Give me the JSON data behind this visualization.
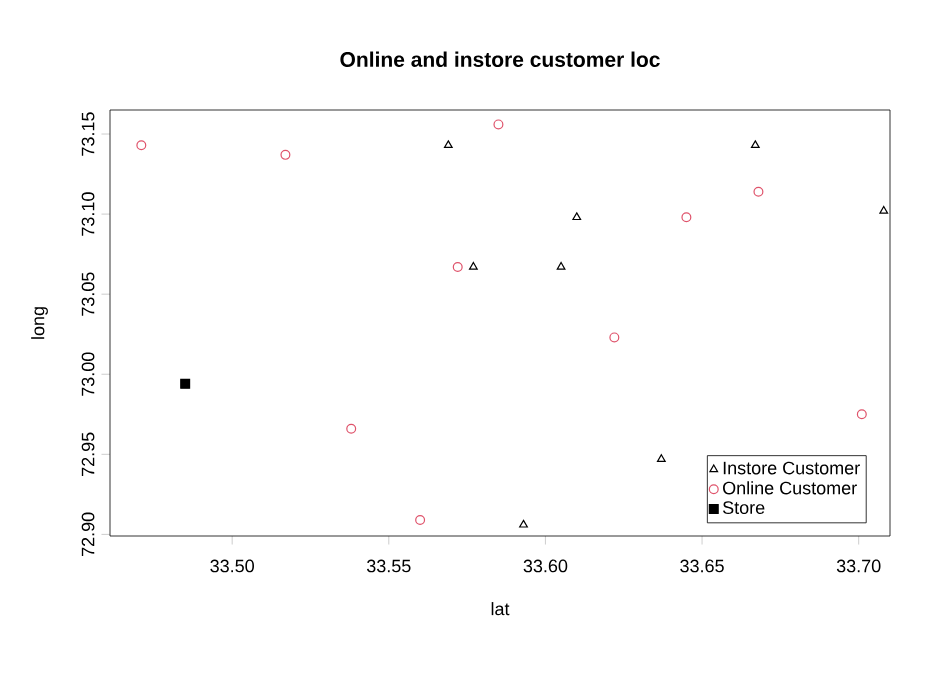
{
  "chart_data": {
    "type": "scatter",
    "title": "Online and instore customer loc",
    "xlabel": "lat",
    "ylabel": "long",
    "xlim": [
      33.461,
      33.71
    ],
    "ylim": [
      72.899,
      73.165
    ],
    "xticks": [
      {
        "value": 33.5,
        "label": "33.50"
      },
      {
        "value": 33.55,
        "label": "33.55"
      },
      {
        "value": 33.6,
        "label": "33.60"
      },
      {
        "value": 33.65,
        "label": "33.65"
      },
      {
        "value": 33.7,
        "label": "33.70"
      }
    ],
    "yticks": [
      {
        "value": 72.9,
        "label": "72.90"
      },
      {
        "value": 72.95,
        "label": "72.95"
      },
      {
        "value": 73.0,
        "label": "73.00"
      },
      {
        "value": 73.05,
        "label": "73.05"
      },
      {
        "value": 73.1,
        "label": "73.10"
      },
      {
        "value": 73.15,
        "label": "73.15"
      }
    ],
    "grid": false,
    "legend": "bottom right",
    "series": [
      {
        "name": "Instore Customer",
        "color": "#000000",
        "marker": "triangle",
        "x": [
          33.569,
          33.577,
          33.593,
          33.667,
          33.61,
          33.708,
          33.605,
          33.637
        ],
        "values": [
          73.143,
          73.067,
          72.906,
          73.143,
          73.098,
          73.102,
          73.067,
          72.947
        ]
      },
      {
        "name": "Online Customer",
        "color": "#df536b",
        "marker": "circle",
        "x": [
          33.471,
          33.517,
          33.585,
          33.572,
          33.538,
          33.56,
          33.668,
          33.645,
          33.622,
          33.701
        ],
        "values": [
          73.143,
          73.137,
          73.156,
          73.067,
          72.966,
          72.909,
          73.114,
          73.098,
          73.023,
          72.975
        ]
      },
      {
        "name": "Store",
        "color": "#000000",
        "marker": "square",
        "x": [
          33.485
        ],
        "values": [
          72.994
        ]
      }
    ]
  }
}
